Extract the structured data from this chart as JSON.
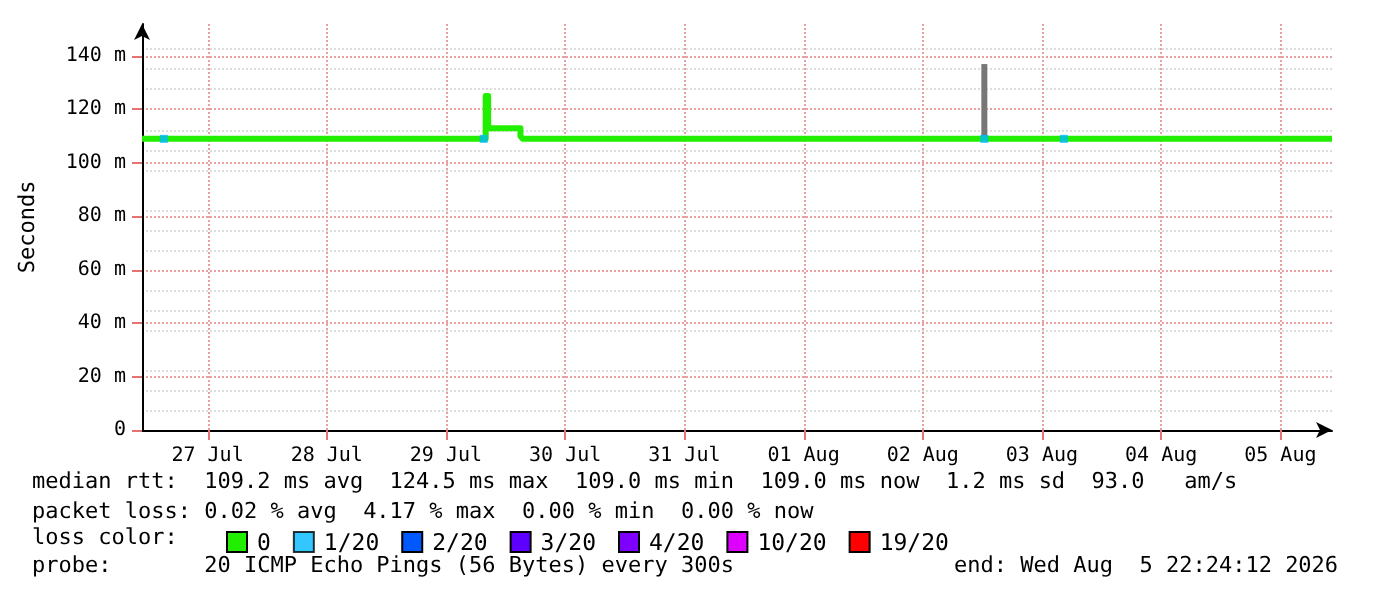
{
  "chart_data": {
    "type": "line",
    "ylabel": "Seconds",
    "legend_title": "loss color:",
    "xlim": [
      "2026-07-26T22:48",
      "2026-08-05T22:24"
    ],
    "xticks": [
      {
        "value": "2026-07-27T12:00",
        "label": "27 Jul"
      },
      {
        "value": "2026-07-28T12:00",
        "label": "28 Jul"
      },
      {
        "value": "2026-07-29T12:00",
        "label": "29 Jul"
      },
      {
        "value": "2026-07-30T12:00",
        "label": "30 Jul"
      },
      {
        "value": "2026-07-31T12:00",
        "label": "31 Jul"
      },
      {
        "value": "2026-08-01T12:00",
        "label": "01 Aug"
      },
      {
        "value": "2026-08-02T12:00",
        "label": "02 Aug"
      },
      {
        "value": "2026-08-03T12:00",
        "label": "03 Aug"
      },
      {
        "value": "2026-08-04T12:00",
        "label": "04 Aug"
      },
      {
        "value": "2026-08-05T12:00",
        "label": "05 Aug"
      }
    ],
    "ylim": [
      0,
      152
    ],
    "yticks": [
      0,
      {
        "value": 20,
        "label": "20 m"
      },
      {
        "value": 40,
        "label": "40 m"
      },
      {
        "value": 60,
        "label": "60 m"
      },
      {
        "value": 80,
        "label": "80 m"
      },
      {
        "value": 100,
        "label": "100 m"
      },
      {
        "value": 120,
        "label": "120 m"
      },
      {
        "value": 140,
        "label": "140 m"
      }
    ],
    "grid": true,
    "legend": "bottom",
    "marker": "none",
    "line_style": "solid",
    "series": [
      {
        "type": "bar",
        "color": "#777777",
        "x": [
          "2026-08-03T00:24"
        ],
        "base": [
          109
        ],
        "values": [
          28
        ]
      },
      {
        "name": "0",
        "color": "#22ee00",
        "x": [
          "2026-07-26T22:48",
          "2026-07-29T20:00",
          "2026-07-29T20:00",
          "2026-07-29T20:30",
          "2026-07-29T20:30",
          "2026-07-30T03:00",
          "2026-07-30T03:00",
          "2026-07-30T03:30",
          "2026-08-05T22:24"
        ],
        "values": [
          109,
          109,
          125,
          125,
          113,
          113,
          110,
          109,
          109
        ]
      },
      {
        "name": "1/20",
        "type": "scatter",
        "marker": "square",
        "color": "#00b8ff",
        "x": [
          "2026-07-27T03:12",
          "2026-07-29T19:36",
          "2026-08-03T00:24",
          "2026-08-03T16:24"
        ],
        "values": [
          109,
          109,
          109,
          109
        ]
      },
      {
        "name": "2/20",
        "color": "#0059ff"
      },
      {
        "name": "3/20",
        "color": "#5e00ff"
      },
      {
        "name": "4/20",
        "color": "#7e00ff"
      },
      {
        "name": "10/20",
        "color": "#dd00ff"
      },
      {
        "name": "19/20",
        "color": "#ff0000"
      }
    ],
    "annotations": [
      "median rtt:  109.2 ms avg  124.5 ms max  109.0 ms min  109.0 ms now  1.2 ms sd  93.0   am/s",
      "packet loss: 0.02 % avg  4.17 % max  0.00 % min  0.00 % now",
      "probe:       20 ICMP Echo Pings (56 Bytes) every 300s",
      "end: Wed Aug  5 22:24:12 2026"
    ]
  }
}
